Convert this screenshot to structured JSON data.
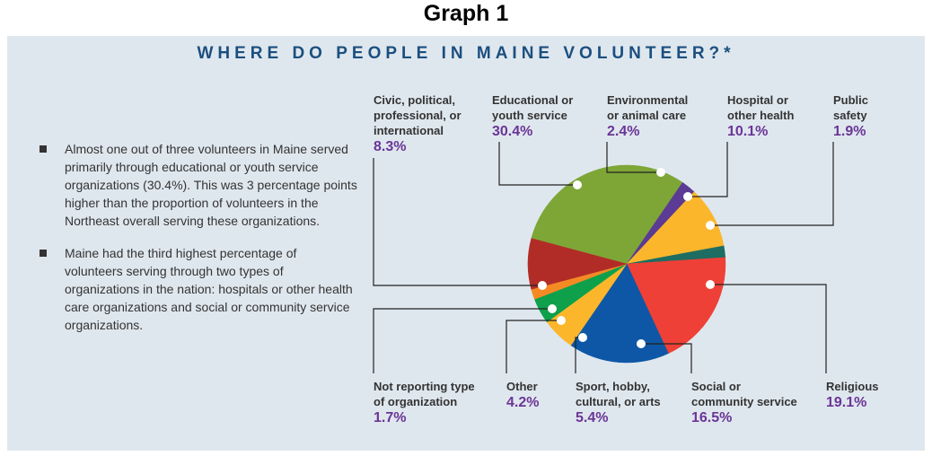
{
  "header": {
    "graph_label": "Graph 1"
  },
  "bullets": [
    "Almost one out of three volunteers in Maine served primarily through educational or youth service organizations (30.4%). This was 3 percentage points higher than the proportion of volunteers in the Northeast overall serving these organizations.",
    "Maine had the third highest percentage of volunteers serving through two types of organizations in the nation: hospitals or other health care organizations and social or community service organizations."
  ],
  "chart_data": {
    "type": "pie",
    "title": "WHERE DO PEOPLE IN MAINE VOLUNTEER?*",
    "unit": "%",
    "slices": [
      {
        "label": "Educational or youth service",
        "value": 30.4,
        "display": "30.4%",
        "color": "#7ea637"
      },
      {
        "label": "Environmental or animal care",
        "value": 2.4,
        "display": "2.4%",
        "color": "#5b3b93"
      },
      {
        "label": "Hospital or other health",
        "value": 10.1,
        "display": "10.1%",
        "color": "#fbb62c"
      },
      {
        "label": "Public safety",
        "value": 1.9,
        "display": "1.9%",
        "color": "#1d6d63"
      },
      {
        "label": "Religious",
        "value": 19.1,
        "display": "19.1%",
        "color": "#ee4036"
      },
      {
        "label": "Social or community service",
        "value": 16.5,
        "display": "16.5%",
        "color": "#0d57a6"
      },
      {
        "label": "Sport, hobby, cultural, or arts",
        "value": 5.4,
        "display": "5.4%",
        "color": "#fbb62c"
      },
      {
        "label": "Other",
        "value": 4.2,
        "display": "4.2%",
        "color": "#0ea04b"
      },
      {
        "label": "Not reporting type of organization",
        "value": 1.7,
        "display": "1.7%",
        "color": "#f58a24"
      },
      {
        "label": "Civic, political, professional, or international",
        "value": 8.3,
        "display": "8.3%",
        "color": "#b22c27"
      }
    ]
  }
}
